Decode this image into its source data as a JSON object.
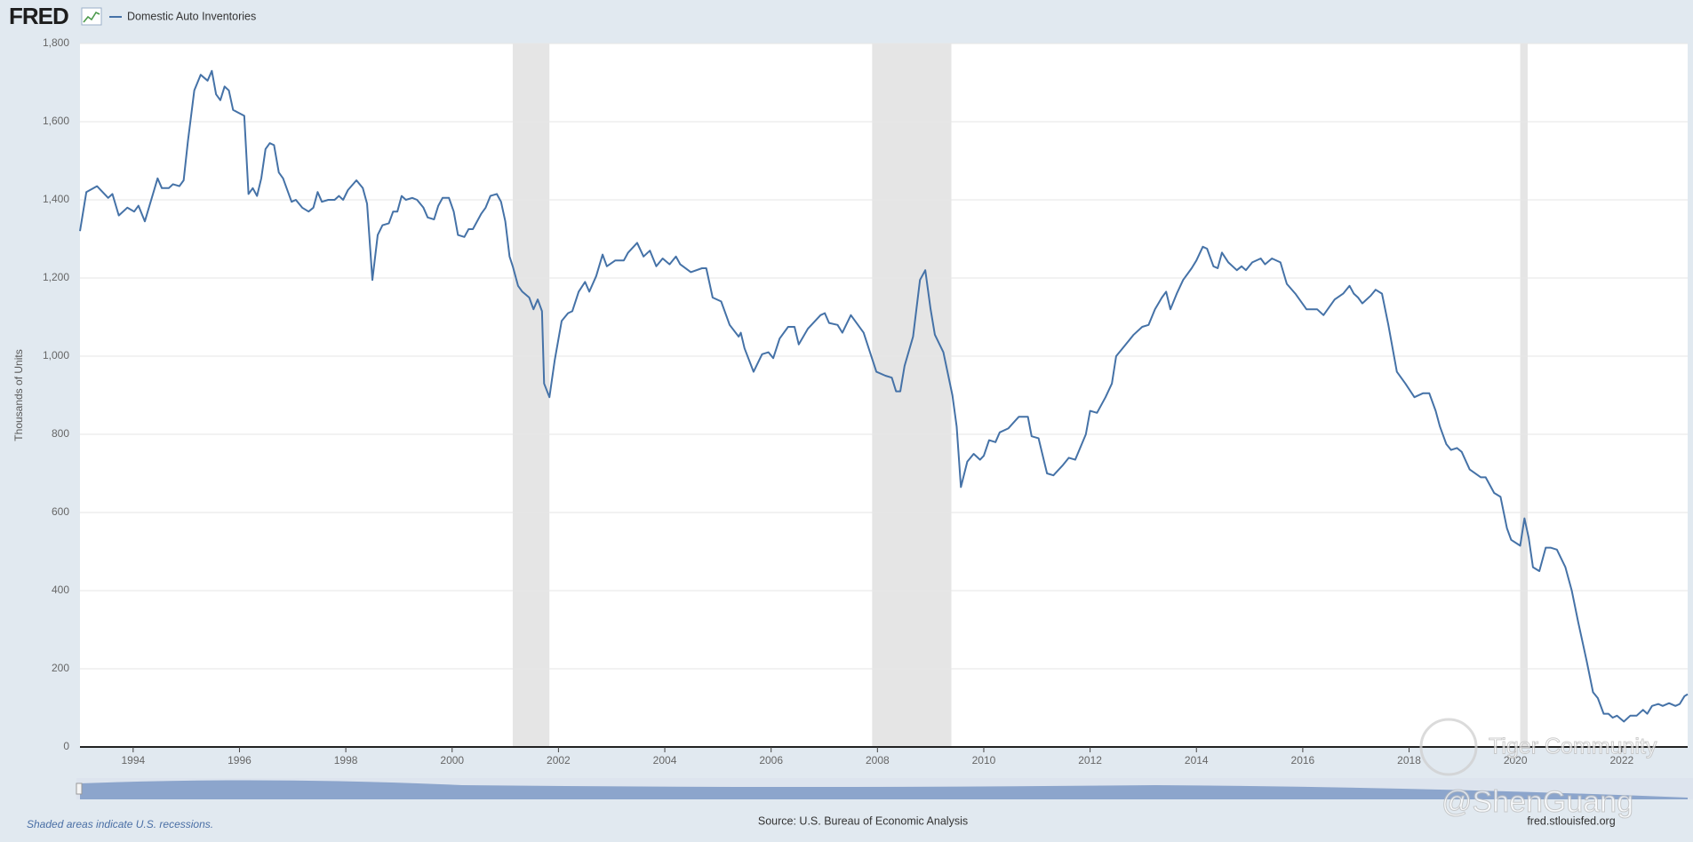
{
  "header": {
    "logo": "FRED"
  },
  "chart_data": {
    "type": "line",
    "y_label": "Thousands of Units",
    "note": "Shaded areas indicate U.S. recessions.",
    "source": "Source: U.S. Bureau of Economic Analysis",
    "site": "fred.stlouisfed.org",
    "xlim": [
      1993,
      2023.24
    ],
    "xticks": [
      1994,
      1996,
      1998,
      2000,
      2002,
      2004,
      2006,
      2008,
      2010,
      2012,
      2014,
      2016,
      2018,
      2020,
      2022
    ],
    "ylim": [
      0,
      1800
    ],
    "yticks": [
      0,
      200,
      400,
      600,
      800,
      {
        "value": 1000,
        "label": "1,000"
      },
      {
        "value": 1200,
        "label": "1,200"
      },
      {
        "value": 1400,
        "label": "1,400"
      },
      {
        "value": 1600,
        "label": "1,600"
      },
      {
        "value": 1800,
        "label": "1,800"
      }
    ],
    "grid": true,
    "recessions": [
      [
        2001.14,
        2001.83
      ],
      [
        2007.9,
        2009.39
      ],
      [
        2020.09,
        2020.23
      ]
    ],
    "recession_color": "#e5e5e5",
    "x": [
      1993.0,
      1993.12,
      1993.32,
      1993.53,
      1993.61,
      1993.73,
      1993.89,
      1994.02,
      1994.1,
      1994.22,
      1994.34,
      1994.46,
      1994.54,
      1994.67,
      1994.75,
      1994.87,
      1994.95,
      1995.03,
      1995.15,
      1995.27,
      1995.4,
      1995.48,
      1995.56,
      1995.64,
      1995.72,
      1995.8,
      1995.88,
      1996.09,
      1996.17,
      1996.25,
      1996.33,
      1996.41,
      1996.49,
      1996.57,
      1996.65,
      1996.74,
      1996.82,
      1996.98,
      1997.06,
      1997.18,
      1997.3,
      1997.39,
      1997.47,
      1997.55,
      1997.67,
      1997.79,
      1997.87,
      1997.95,
      1998.04,
      1998.2,
      1998.32,
      1998.4,
      1998.5,
      1998.6,
      1998.69,
      1998.81,
      1998.89,
      1998.97,
      1999.05,
      1999.13,
      1999.25,
      1999.34,
      1999.46,
      1999.54,
      1999.66,
      1999.74,
      1999.82,
      1999.94,
      2000.03,
      2000.11,
      2000.23,
      2000.31,
      2000.39,
      2000.55,
      2000.63,
      2000.72,
      2000.84,
      2000.92,
      2001.0,
      2001.08,
      2001.14,
      2001.24,
      2001.32,
      2001.45,
      2001.53,
      2001.61,
      2001.69,
      2001.73,
      2001.83,
      2001.93,
      2002.06,
      2002.18,
      2002.26,
      2002.38,
      2002.5,
      2002.58,
      2002.71,
      2002.83,
      2002.91,
      2003.07,
      2003.23,
      2003.31,
      2003.48,
      2003.6,
      2003.72,
      2003.84,
      2003.96,
      2004.09,
      2004.21,
      2004.29,
      2004.49,
      2004.7,
      2004.78,
      2004.9,
      2005.06,
      2005.22,
      2005.39,
      2005.43,
      2005.5,
      2005.67,
      2005.83,
      2005.95,
      2006.04,
      2006.16,
      2006.32,
      2006.44,
      2006.52,
      2006.69,
      2006.93,
      2007.01,
      2007.09,
      2007.25,
      2007.34,
      2007.5,
      2007.74,
      2007.98,
      2008.15,
      2008.27,
      2008.35,
      2008.43,
      2008.51,
      2008.67,
      2008.8,
      2008.9,
      2009.0,
      2009.08,
      2009.24,
      2009.41,
      2009.49,
      2009.57,
      2009.69,
      2009.81,
      2009.93,
      2010.0,
      2010.1,
      2010.22,
      2010.3,
      2010.46,
      2010.66,
      2010.83,
      2010.9,
      2011.03,
      2011.19,
      2011.31,
      2011.48,
      2011.6,
      2011.72,
      2011.92,
      2012.0,
      2012.13,
      2012.29,
      2012.41,
      2012.49,
      2012.61,
      2012.82,
      2012.98,
      2013.1,
      2013.22,
      2013.35,
      2013.43,
      2013.51,
      2013.63,
      2013.75,
      2013.91,
      2014.0,
      2014.12,
      2014.2,
      2014.32,
      2014.4,
      2014.48,
      2014.6,
      2014.76,
      2014.85,
      2014.93,
      2015.05,
      2015.21,
      2015.29,
      2015.42,
      2015.58,
      2015.7,
      2015.86,
      2016.07,
      2016.27,
      2016.39,
      2016.6,
      2016.76,
      2016.88,
      2016.96,
      2017.04,
      2017.12,
      2017.28,
      2017.37,
      2017.49,
      2017.61,
      2017.77,
      2017.93,
      2018.1,
      2018.26,
      2018.38,
      2018.5,
      2018.58,
      2018.7,
      2018.79,
      2018.9,
      2018.99,
      2019.14,
      2019.35,
      2019.44,
      2019.6,
      2019.72,
      2019.84,
      2019.92,
      2020.09,
      2020.17,
      2020.25,
      2020.33,
      2020.45,
      2020.57,
      2020.66,
      2020.78,
      2020.94,
      2021.06,
      2021.18,
      2021.34,
      2021.46,
      2021.55,
      2021.66,
      2021.75,
      2021.83,
      2021.91,
      2022.04,
      2022.16,
      2022.28,
      2022.4,
      2022.48,
      2022.57,
      2022.69,
      2022.77,
      2022.89,
      2023.01,
      2023.09,
      2023.18,
      2023.24
    ],
    "series": [
      {
        "name": "Domestic Auto Inventories",
        "color": "#4572a7",
        "values": [
          1320,
          1420,
          1435,
          1405,
          1415,
          1360,
          1380,
          1370,
          1385,
          1345,
          1400,
          1455,
          1430,
          1430,
          1440,
          1435,
          1450,
          1550,
          1680,
          1720,
          1705,
          1730,
          1670,
          1655,
          1690,
          1680,
          1630,
          1615,
          1415,
          1430,
          1410,
          1455,
          1530,
          1545,
          1540,
          1470,
          1455,
          1395,
          1400,
          1380,
          1370,
          1380,
          1420,
          1395,
          1400,
          1400,
          1410,
          1400,
          1425,
          1450,
          1430,
          1390,
          1195,
          1310,
          1335,
          1340,
          1370,
          1370,
          1410,
          1400,
          1405,
          1400,
          1380,
          1355,
          1350,
          1385,
          1405,
          1405,
          1370,
          1310,
          1305,
          1325,
          1325,
          1365,
          1380,
          1410,
          1415,
          1395,
          1345,
          1255,
          1230,
          1180,
          1165,
          1150,
          1120,
          1145,
          1115,
          930,
          895,
          990,
          1090,
          1110,
          1115,
          1165,
          1190,
          1165,
          1205,
          1260,
          1230,
          1245,
          1245,
          1265,
          1290,
          1255,
          1270,
          1230,
          1250,
          1235,
          1255,
          1235,
          1215,
          1225,
          1225,
          1150,
          1140,
          1080,
          1050,
          1060,
          1020,
          960,
          1005,
          1010,
          995,
          1045,
          1075,
          1075,
          1030,
          1070,
          1105,
          1110,
          1085,
          1080,
          1060,
          1105,
          1060,
          960,
          950,
          945,
          910,
          910,
          975,
          1050,
          1195,
          1220,
          1120,
          1055,
          1010,
          900,
          820,
          665,
          730,
          750,
          735,
          745,
          785,
          780,
          805,
          815,
          845,
          845,
          795,
          790,
          700,
          695,
          720,
          740,
          735,
          800,
          860,
          855,
          895,
          930,
          1000,
          1020,
          1055,
          1075,
          1080,
          1120,
          1150,
          1165,
          1120,
          1160,
          1195,
          1225,
          1245,
          1280,
          1275,
          1230,
          1225,
          1265,
          1240,
          1220,
          1230,
          1220,
          1240,
          1250,
          1235,
          1250,
          1240,
          1185,
          1160,
          1120,
          1120,
          1105,
          1145,
          1160,
          1180,
          1160,
          1150,
          1135,
          1155,
          1170,
          1160,
          1080,
          960,
          930,
          895,
          905,
          905,
          860,
          820,
          775,
          760,
          765,
          755,
          710,
          690,
          690,
          650,
          640,
          560,
          530,
          515,
          585,
          535,
          460,
          450,
          510,
          510,
          505,
          460,
          400,
          320,
          220,
          140,
          125,
          85,
          85,
          75,
          80,
          65,
          80,
          80,
          95,
          85,
          105,
          110,
          105,
          112,
          105,
          110,
          130,
          135
        ]
      }
    ]
  },
  "watermark": {
    "brand": "Tiger Community",
    "handle": "@ShenGuang"
  }
}
